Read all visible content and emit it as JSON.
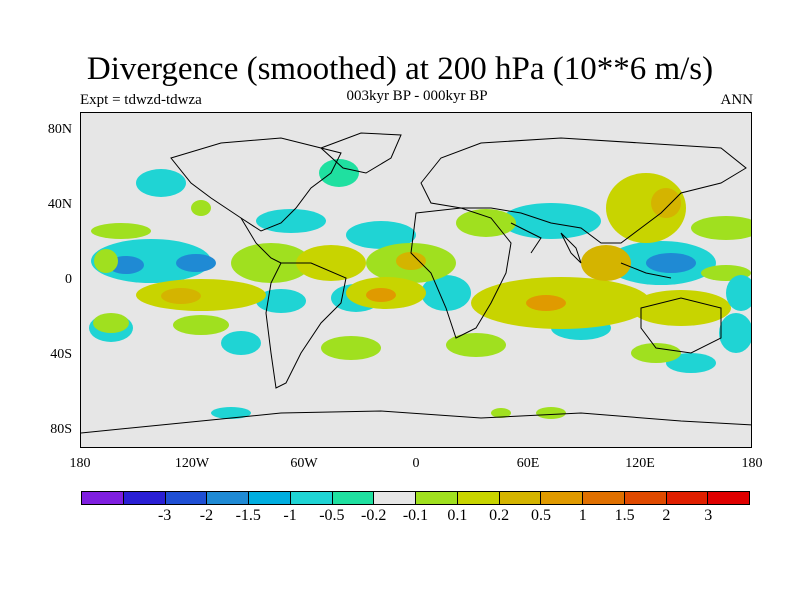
{
  "title": "Divergence (smoothed) at 200 hPa (10**6 m/s)",
  "subtitle": "003kyr BP - 000kyr BP",
  "expt": "Expt = tdwzd-tdwza",
  "season": "ANN",
  "lat_labels": [
    "80N",
    "40N",
    "0",
    "40S",
    "80S"
  ],
  "lon_labels": [
    "180",
    "120W",
    "60W",
    "0",
    "60E",
    "120E",
    "180"
  ],
  "colorbar": {
    "colors": [
      "#7f1fe0",
      "#2a1fd4",
      "#1f4fd4",
      "#1f8ad4",
      "#00aee0",
      "#1fd4d4",
      "#1fe0a0",
      "#e6e6e6",
      "#a0e01f",
      "#c8d400",
      "#d4b400",
      "#e09a00",
      "#e07000",
      "#e04a00",
      "#e01f00",
      "#e00000"
    ],
    "labels": [
      "-3",
      "-2",
      "-1.5",
      "-1",
      "-0.5",
      "-0.2",
      "-0.1",
      "0.1",
      "0.2",
      "0.5",
      "1",
      "1.5",
      "2",
      "3"
    ]
  }
}
